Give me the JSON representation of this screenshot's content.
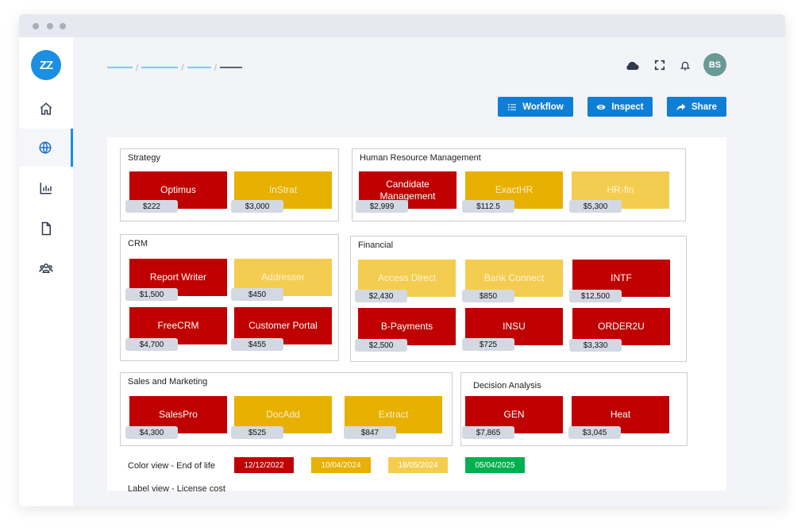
{
  "window": {
    "controls": [
      "close",
      "minimize",
      "maximize"
    ]
  },
  "sidebar": {
    "logo_text": "ZZ",
    "items": [
      {
        "name": "home",
        "icon": "home-icon",
        "active": false
      },
      {
        "name": "globe",
        "icon": "globe-icon",
        "active": true
      },
      {
        "name": "reports",
        "icon": "bar-chart-icon",
        "active": false
      },
      {
        "name": "documents",
        "icon": "document-icon",
        "active": false
      },
      {
        "name": "users",
        "icon": "users-icon",
        "active": false
      }
    ]
  },
  "header": {
    "avatar_initials": "BS",
    "icons": [
      "cloud-icon",
      "fullscreen-icon",
      "bell-icon"
    ]
  },
  "toolbar": {
    "workflow_label": "Workflow",
    "inspect_label": "Inspect",
    "share_label": "Share"
  },
  "colors": {
    "accent": "#0f7fd6",
    "red": "#c00000",
    "amber": "#e8b000",
    "yellow": "#f4cd50",
    "green": "#00b050"
  },
  "groups": {
    "strategy": {
      "title": "Strategy",
      "apps": [
        {
          "name": "Optimus",
          "cost": "$222",
          "color": "red"
        },
        {
          "name": "InStrat",
          "cost": "$3,000",
          "color": "amber"
        }
      ]
    },
    "hrm": {
      "title": "Human Resource Management",
      "apps": [
        {
          "name": "Candidate Management",
          "cost": "$2,999",
          "color": "red"
        },
        {
          "name": "ExactHR",
          "cost": "$112.5",
          "color": "amber"
        },
        {
          "name": "HR-fin",
          "cost": "$5,300",
          "color": "yellow"
        }
      ]
    },
    "crm": {
      "title": "CRM",
      "apps": [
        {
          "name": "Report Writer",
          "cost": "$1,500",
          "color": "red"
        },
        {
          "name": "Addresser",
          "cost": "$450",
          "color": "yellow"
        },
        {
          "name": "FreeCRM",
          "cost": "$4,700",
          "color": "red"
        },
        {
          "name": "Customer Portal",
          "cost": "$455",
          "color": "red"
        }
      ]
    },
    "financial": {
      "title": "Financial",
      "apps": [
        {
          "name": "Access Direct",
          "cost": "$2,430",
          "color": "yellow"
        },
        {
          "name": "Bank Connect",
          "cost": "$850",
          "color": "yellow"
        },
        {
          "name": "INTF",
          "cost": "$12,500",
          "color": "red"
        },
        {
          "name": "B-Payments",
          "cost": "$2,500",
          "color": "red"
        },
        {
          "name": "INSU",
          "cost": "$725",
          "color": "red"
        },
        {
          "name": "ORDER2U",
          "cost": "$3,330",
          "color": "red"
        }
      ]
    },
    "sales": {
      "title": "Sales and Marketing",
      "apps": [
        {
          "name": "SalesPro",
          "cost": "$4,300",
          "color": "red"
        },
        {
          "name": "DocAdd",
          "cost": "$525",
          "color": "amber"
        },
        {
          "name": "Extract",
          "cost": "$847",
          "color": "amber"
        }
      ]
    },
    "decision": {
      "title": "Decision Analysis",
      "apps": [
        {
          "name": "GEN",
          "cost": "$7,865",
          "color": "red"
        },
        {
          "name": "Heat",
          "cost": "$3,045",
          "color": "red"
        }
      ]
    }
  },
  "legend": {
    "color_view_label": "Color view - End of life",
    "label_view_label": "Label view - License cost",
    "dates": [
      {
        "date": "12/12/2022",
        "color": "red"
      },
      {
        "date": "10/04/2024",
        "color": "amber"
      },
      {
        "date": "18/05/2024",
        "color": "yellow"
      },
      {
        "date": "05/04/2025",
        "color": "green"
      }
    ]
  }
}
